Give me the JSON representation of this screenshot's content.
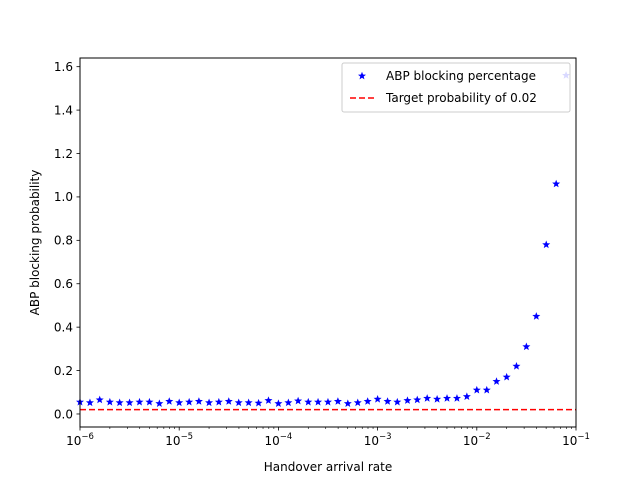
{
  "chart_data": {
    "type": "scatter",
    "xscale": "log",
    "xlim": [
      1e-06,
      0.1
    ],
    "ylim": [
      -0.06,
      1.64
    ],
    "xlabel": "Handover arrival rate",
    "ylabel": "ABP blocking probability",
    "x_ticks": [
      {
        "value": 1e-06,
        "base": "10",
        "exp": "−6"
      },
      {
        "value": 1e-05,
        "base": "10",
        "exp": "−5"
      },
      {
        "value": 0.0001,
        "base": "10",
        "exp": "−4"
      },
      {
        "value": 0.001,
        "base": "10",
        "exp": "−3"
      },
      {
        "value": 0.01,
        "base": "10",
        "exp": "−2"
      },
      {
        "value": 0.1,
        "base": "10",
        "exp": "−1"
      }
    ],
    "y_ticks": [
      {
        "value": 0.0,
        "label": "0.0"
      },
      {
        "value": 0.2,
        "label": "0.2"
      },
      {
        "value": 0.4,
        "label": "0.4"
      },
      {
        "value": 0.6,
        "label": "0.6"
      },
      {
        "value": 0.8,
        "label": "0.8"
      },
      {
        "value": 1.0,
        "label": "1.0"
      },
      {
        "value": 1.2,
        "label": "1.2"
      },
      {
        "value": 1.4,
        "label": "1.4"
      },
      {
        "value": 1.6,
        "label": "1.6"
      }
    ],
    "legend_position": "top-right",
    "series": [
      {
        "name": "ABP blocking percentage",
        "kind": "markers",
        "marker": "star",
        "color": "#0000ff",
        "points": [
          [
            1e-06,
            0.055
          ],
          [
            1.26e-06,
            0.052
          ],
          [
            1.58e-06,
            0.065
          ],
          [
            2e-06,
            0.055
          ],
          [
            2.51e-06,
            0.052
          ],
          [
            3.16e-06,
            0.052
          ],
          [
            3.98e-06,
            0.055
          ],
          [
            5.01e-06,
            0.055
          ],
          [
            6.31e-06,
            0.048
          ],
          [
            7.94e-06,
            0.058
          ],
          [
            1e-05,
            0.052
          ],
          [
            1.26e-05,
            0.055
          ],
          [
            1.58e-05,
            0.058
          ],
          [
            2e-05,
            0.052
          ],
          [
            2.51e-05,
            0.055
          ],
          [
            3.16e-05,
            0.058
          ],
          [
            3.98e-05,
            0.052
          ],
          [
            5.01e-05,
            0.052
          ],
          [
            6.31e-05,
            0.05
          ],
          [
            7.94e-05,
            0.062
          ],
          [
            0.0001,
            0.048
          ],
          [
            0.000126,
            0.052
          ],
          [
            0.000158,
            0.06
          ],
          [
            0.0002,
            0.055
          ],
          [
            0.000251,
            0.055
          ],
          [
            0.000316,
            0.055
          ],
          [
            0.000398,
            0.058
          ],
          [
            0.000501,
            0.048
          ],
          [
            0.000631,
            0.052
          ],
          [
            0.000794,
            0.058
          ],
          [
            0.001,
            0.068
          ],
          [
            0.00126,
            0.058
          ],
          [
            0.00158,
            0.055
          ],
          [
            0.002,
            0.062
          ],
          [
            0.00251,
            0.065
          ],
          [
            0.00316,
            0.072
          ],
          [
            0.00398,
            0.068
          ],
          [
            0.00501,
            0.072
          ],
          [
            0.00631,
            0.072
          ],
          [
            0.00794,
            0.08
          ],
          [
            0.01,
            0.11
          ],
          [
            0.0126,
            0.11
          ],
          [
            0.0158,
            0.15
          ],
          [
            0.02,
            0.17
          ],
          [
            0.0251,
            0.22
          ],
          [
            0.0316,
            0.31
          ],
          [
            0.0398,
            0.45
          ],
          [
            0.0501,
            0.78
          ],
          [
            0.0631,
            1.06
          ],
          [
            0.0794,
            1.56
          ]
        ]
      },
      {
        "name": "Target probability of 0.02",
        "kind": "line",
        "linestyle": "dashed",
        "color": "#ff0000",
        "y": 0.02
      }
    ]
  }
}
